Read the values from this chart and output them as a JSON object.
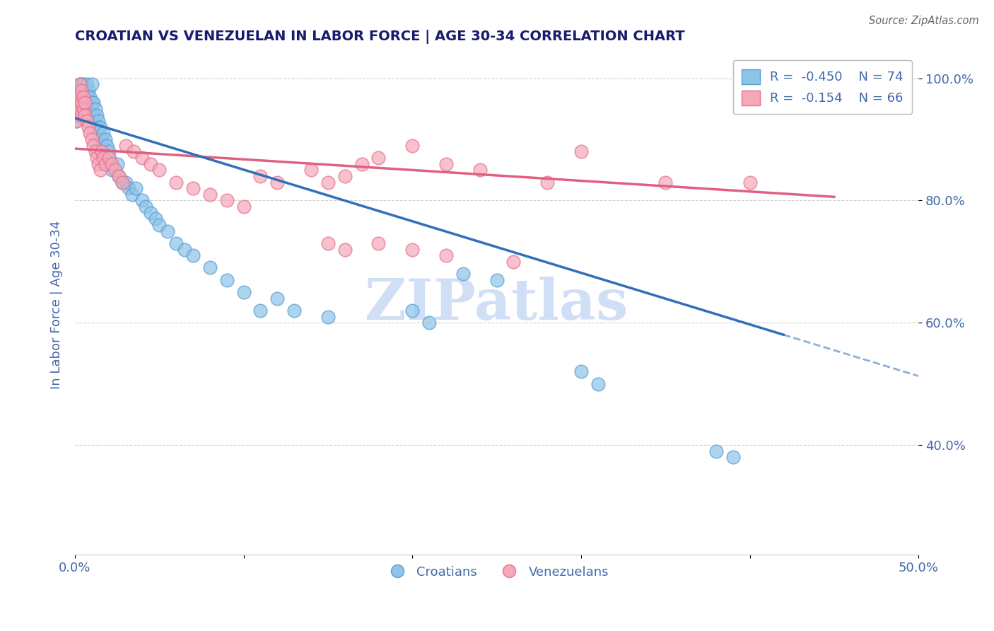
{
  "title": "CROATIAN VS VENEZUELAN IN LABOR FORCE | AGE 30-34 CORRELATION CHART",
  "source": "Source: ZipAtlas.com",
  "ylabel": "In Labor Force | Age 30-34",
  "xlim": [
    0.0,
    0.5
  ],
  "ylim": [
    0.22,
    1.04
  ],
  "xtick_pos": [
    0.0,
    0.1,
    0.2,
    0.3,
    0.4,
    0.5
  ],
  "xtick_labels": [
    "0.0%",
    "",
    "",
    "",
    "",
    "50.0%"
  ],
  "ytick_pos": [
    0.4,
    0.6,
    0.8,
    1.0
  ],
  "ytick_labels": [
    "40.0%",
    "60.0%",
    "80.0%",
    "100.0%"
  ],
  "croatian_color": "#8ec4e8",
  "venezuelan_color": "#f4a8b8",
  "croatian_edge": "#5a9fd4",
  "venezuelan_edge": "#e87090",
  "trendline_croatian_color": "#3070b8",
  "trendline_venezuelan_color": "#e06080",
  "legend_R_croatian": "-0.450",
  "legend_N_croatian": "74",
  "legend_R_venezuelan": "-0.154",
  "legend_N_venezuelan": "66",
  "title_color": "#1a1a6e",
  "tick_color": "#4169aa",
  "watermark_text": "ZIPatlas",
  "watermark_color": "#d0dff5",
  "croatian_x": [
    0.001,
    0.001,
    0.001,
    0.001,
    0.001,
    0.002,
    0.002,
    0.002,
    0.002,
    0.003,
    0.003,
    0.003,
    0.003,
    0.004,
    0.004,
    0.004,
    0.005,
    0.005,
    0.005,
    0.006,
    0.006,
    0.007,
    0.007,
    0.008,
    0.008,
    0.009,
    0.01,
    0.01,
    0.011,
    0.011,
    0.012,
    0.013,
    0.014,
    0.014,
    0.015,
    0.016,
    0.017,
    0.018,
    0.019,
    0.02,
    0.02,
    0.021,
    0.022,
    0.025,
    0.026,
    0.028,
    0.03,
    0.032,
    0.034,
    0.036,
    0.04,
    0.042,
    0.045,
    0.048,
    0.05,
    0.055,
    0.06,
    0.065,
    0.07,
    0.08,
    0.09,
    0.1,
    0.11,
    0.12,
    0.13,
    0.15,
    0.2,
    0.21,
    0.23,
    0.25,
    0.3,
    0.31,
    0.38,
    0.39
  ],
  "croatian_y": [
    0.97,
    0.96,
    0.95,
    0.94,
    0.93,
    0.98,
    0.97,
    0.96,
    0.95,
    0.99,
    0.98,
    0.97,
    0.96,
    0.99,
    0.98,
    0.97,
    0.99,
    0.98,
    0.97,
    0.98,
    0.97,
    0.99,
    0.97,
    0.98,
    0.96,
    0.97,
    0.99,
    0.96,
    0.96,
    0.94,
    0.95,
    0.94,
    0.93,
    0.92,
    0.92,
    0.9,
    0.91,
    0.9,
    0.89,
    0.88,
    0.87,
    0.86,
    0.85,
    0.86,
    0.84,
    0.83,
    0.83,
    0.82,
    0.81,
    0.82,
    0.8,
    0.79,
    0.78,
    0.77,
    0.76,
    0.75,
    0.73,
    0.72,
    0.71,
    0.69,
    0.67,
    0.65,
    0.62,
    0.64,
    0.62,
    0.61,
    0.62,
    0.6,
    0.68,
    0.67,
    0.52,
    0.5,
    0.39,
    0.38
  ],
  "venezuelan_x": [
    0.001,
    0.001,
    0.001,
    0.001,
    0.001,
    0.002,
    0.002,
    0.002,
    0.002,
    0.003,
    0.003,
    0.003,
    0.004,
    0.004,
    0.004,
    0.005,
    0.005,
    0.006,
    0.006,
    0.007,
    0.008,
    0.009,
    0.01,
    0.011,
    0.012,
    0.013,
    0.014,
    0.015,
    0.016,
    0.017,
    0.018,
    0.02,
    0.022,
    0.024,
    0.026,
    0.028,
    0.03,
    0.035,
    0.04,
    0.045,
    0.05,
    0.06,
    0.07,
    0.08,
    0.09,
    0.1,
    0.11,
    0.12,
    0.14,
    0.15,
    0.16,
    0.17,
    0.18,
    0.2,
    0.22,
    0.24,
    0.28,
    0.3,
    0.35,
    0.4,
    0.15,
    0.16,
    0.18,
    0.2,
    0.22,
    0.26
  ],
  "venezuelan_y": [
    0.97,
    0.96,
    0.95,
    0.94,
    0.93,
    0.98,
    0.97,
    0.96,
    0.95,
    0.99,
    0.97,
    0.95,
    0.98,
    0.96,
    0.94,
    0.97,
    0.95,
    0.96,
    0.94,
    0.93,
    0.92,
    0.91,
    0.9,
    0.89,
    0.88,
    0.87,
    0.86,
    0.85,
    0.88,
    0.87,
    0.86,
    0.87,
    0.86,
    0.85,
    0.84,
    0.83,
    0.89,
    0.88,
    0.87,
    0.86,
    0.85,
    0.83,
    0.82,
    0.81,
    0.8,
    0.79,
    0.84,
    0.83,
    0.85,
    0.83,
    0.84,
    0.86,
    0.87,
    0.89,
    0.86,
    0.85,
    0.83,
    0.88,
    0.83,
    0.83,
    0.73,
    0.72,
    0.73,
    0.72,
    0.71,
    0.7
  ],
  "trendline_croatian_x0": 0.0,
  "trendline_croatian_y0": 0.935,
  "trendline_croatian_x1": 0.45,
  "trendline_croatian_y1": 0.555,
  "trendline_venezuelan_x0": 0.0,
  "trendline_venezuelan_y0": 0.885,
  "trendline_venezuelan_x1": 0.45,
  "trendline_venezuelan_y1": 0.806
}
